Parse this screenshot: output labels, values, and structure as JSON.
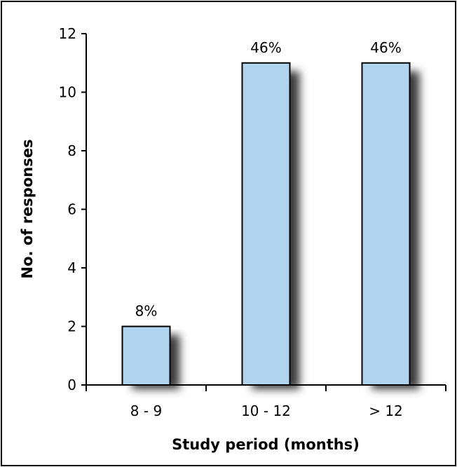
{
  "chart_data": {
    "type": "bar",
    "categories": [
      "8 - 9",
      "10 - 12",
      "> 12"
    ],
    "values": [
      2,
      11,
      11
    ],
    "data_labels": [
      "8%",
      "46%",
      "46%"
    ],
    "title": "",
    "xlabel": "Study period (months)",
    "ylabel": "No. of responses",
    "ylim": [
      0,
      12
    ],
    "yticks": [
      0,
      2,
      4,
      6,
      8,
      10,
      12
    ],
    "ytick_labels": [
      "0",
      "2",
      "4",
      "6",
      "8",
      "10",
      "12"
    ],
    "grid": false,
    "legend": "none",
    "bar_color": "#b0d4ee",
    "bar_edge_color": "#000000",
    "shadow_color": "#3a3a3a"
  }
}
